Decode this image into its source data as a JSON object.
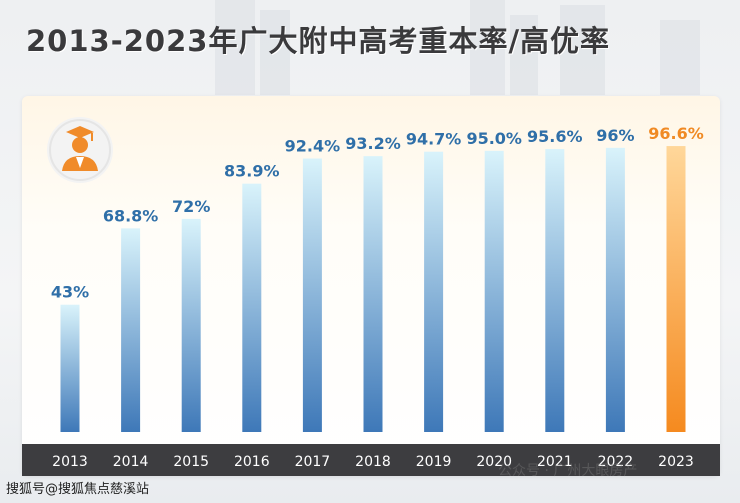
{
  "title": "2013-2023年广大附中高考重本率/高优率",
  "footer_text": "搜狐号@搜狐焦点慈溪站",
  "watermark_text": "公众号 · 广州大眼房产",
  "colors": {
    "bar_blue_top": "#d9f3fb",
    "bar_blue_bottom": "#3e78b8",
    "bar_orange_top": "#ffd79a",
    "bar_orange_bottom": "#f58a1f",
    "label_blue": "#2f6fa8",
    "label_orange": "#f08a24",
    "axis_band": "#3d3d40",
    "icon_orange": "#f08b2a"
  },
  "chart_data": {
    "type": "bar",
    "title": "2013-2023年广大附中高考重本率/高优率",
    "categories": [
      "2013",
      "2014",
      "2015",
      "2016",
      "2017",
      "2018",
      "2019",
      "2020",
      "2021",
      "2022",
      "2023"
    ],
    "values": [
      43,
      68.8,
      72,
      83.9,
      92.4,
      93.2,
      94.7,
      95.0,
      95.6,
      96,
      96.6
    ],
    "value_labels": [
      "43%",
      "68.8%",
      "72%",
      "83.9%",
      "92.4%",
      "93.2%",
      "94.7%",
      "95.0%",
      "95.6%",
      "96%",
      "96.6%"
    ],
    "highlight_index": 10,
    "ylim": [
      0,
      100
    ],
    "xlabel": "",
    "ylabel": "",
    "grid": false,
    "legend": "none"
  }
}
